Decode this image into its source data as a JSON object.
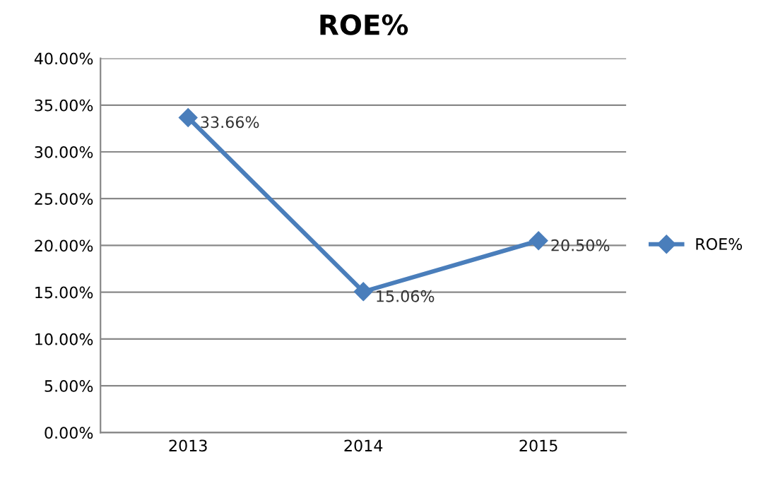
{
  "chart_data": {
    "type": "line",
    "title": "ROE%",
    "categories": [
      "2013",
      "2014",
      "2015"
    ],
    "series": [
      {
        "name": "ROE%",
        "color": "#4a7ebb",
        "values": [
          33.66,
          15.06,
          20.5
        ],
        "value_labels": [
          "33.66%",
          "15.06%",
          "20.50%"
        ]
      }
    ],
    "ylim": [
      0,
      40
    ],
    "yticks": [
      {
        "value": 0,
        "label": "0.00%"
      },
      {
        "value": 5,
        "label": "5.00%"
      },
      {
        "value": 10,
        "label": "10.00%"
      },
      {
        "value": 15,
        "label": "15.00%"
      },
      {
        "value": 20,
        "label": "20.00%"
      },
      {
        "value": 25,
        "label": "25.00%"
      },
      {
        "value": 30,
        "label": "30.00%"
      },
      {
        "value": 35,
        "label": "35.00%"
      },
      {
        "value": 40,
        "label": "40.00%"
      }
    ],
    "grid": "y",
    "legend": "right",
    "marker": "diamond",
    "line_style": "solid"
  }
}
